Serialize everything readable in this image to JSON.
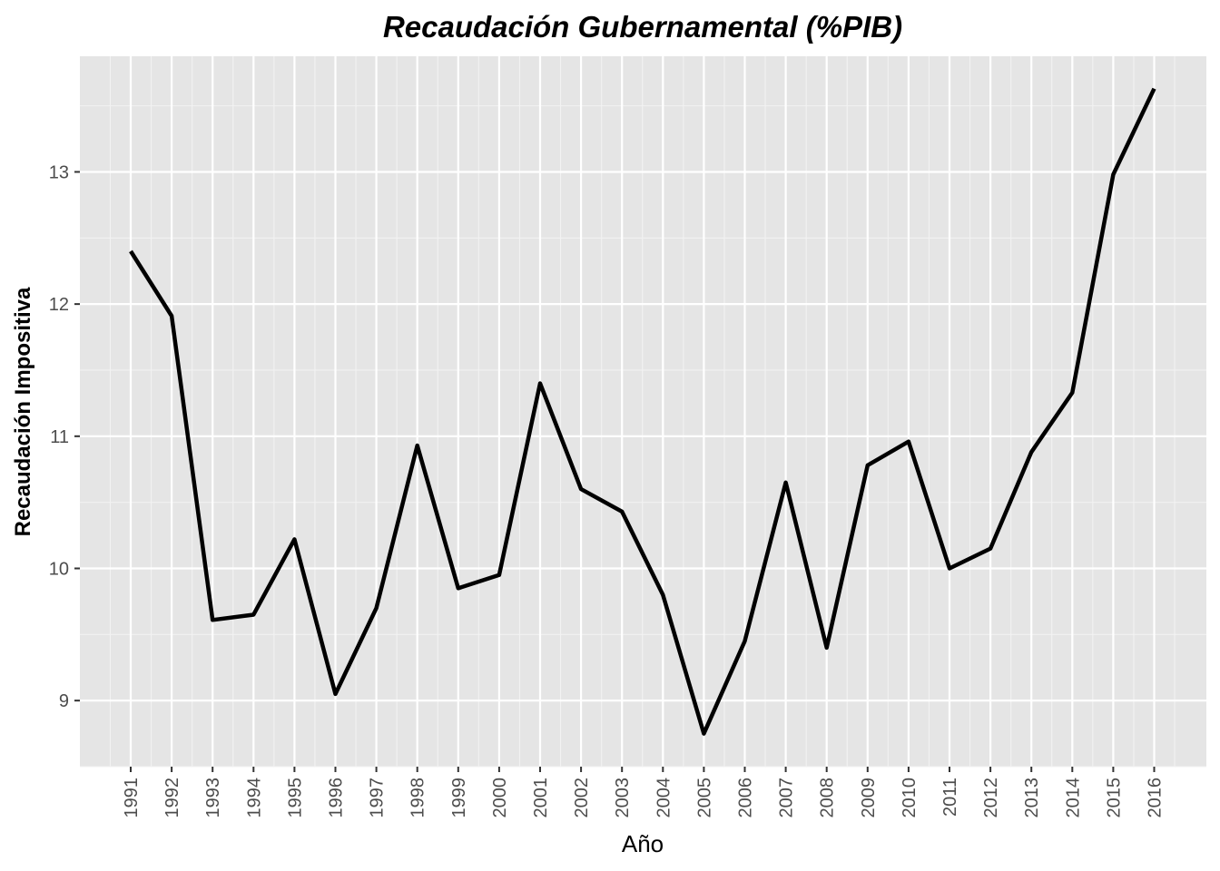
{
  "chart_data": {
    "type": "line",
    "title": "Recaudación Gubernamental (%PIB)",
    "xlabel": "Año",
    "ylabel": "Recaudación Impositiva",
    "x": [
      "1991",
      "1992",
      "1993",
      "1994",
      "1995",
      "1996",
      "1997",
      "1998",
      "1999",
      "2000",
      "2001",
      "2002",
      "2003",
      "2004",
      "2005",
      "2006",
      "2007",
      "2008",
      "2009",
      "2010",
      "2011",
      "2012",
      "2013",
      "2014",
      "2015",
      "2016"
    ],
    "series": [
      {
        "values": [
          12.4,
          11.91,
          9.61,
          9.65,
          10.22,
          9.05,
          9.7,
          10.93,
          9.85,
          9.95,
          11.4,
          10.6,
          10.43,
          9.8,
          8.75,
          9.45,
          10.65,
          9.4,
          10.78,
          10.96,
          10.0,
          10.15,
          10.88,
          11.33,
          12.98,
          13.63
        ]
      }
    ],
    "yticks": [
      9,
      10,
      11,
      12,
      13
    ],
    "ylim": [
      8.5,
      13.875
    ],
    "grid": true,
    "colors": {
      "panel": "#e5e5e5",
      "grid_major": "#ffffff",
      "line": "#000000"
    }
  }
}
